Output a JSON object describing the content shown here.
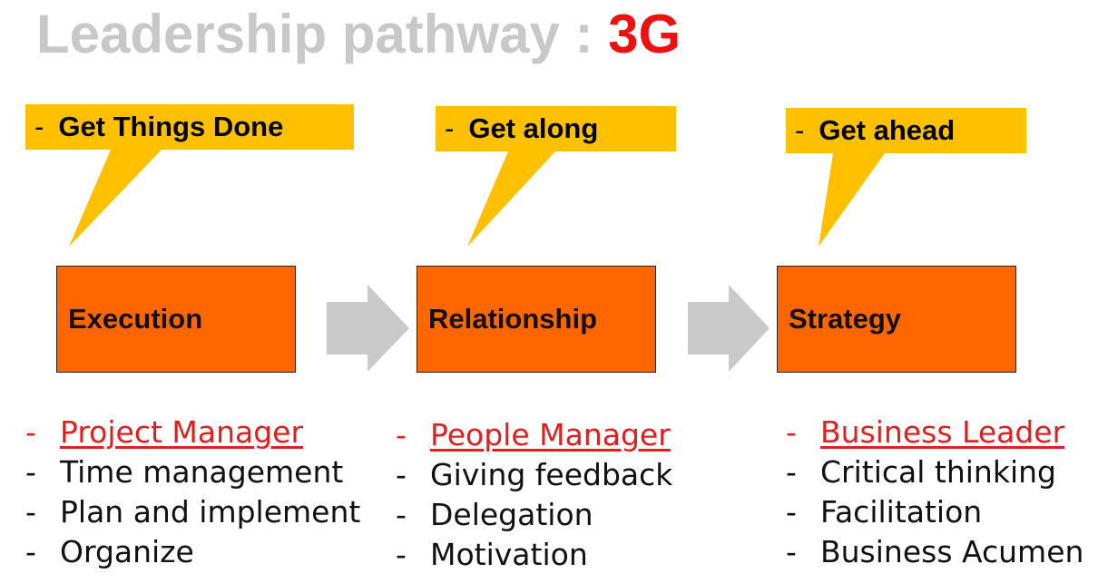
{
  "title": {
    "text": "Leadership pathway : ",
    "accent": "3G"
  },
  "colors": {
    "callout": "#ffc000",
    "stage": "#ff6600",
    "arrow": "#c9c9c9",
    "title": "#c8c8c8",
    "accent": "#ee1111",
    "heading": "#e31e1e"
  },
  "columns": [
    {
      "callout": "Get Things Done",
      "stage": "Execution",
      "items": [
        {
          "text": "Project Manager",
          "heading": true
        },
        {
          "text": "Time management"
        },
        {
          "text": "Plan and implement"
        },
        {
          "text": "Organize"
        }
      ]
    },
    {
      "callout": "Get along",
      "stage": "Relationship",
      "items": [
        {
          "text": "People Manager",
          "heading": true
        },
        {
          "text": "Giving feedback"
        },
        {
          "text": "Delegation"
        },
        {
          "text": "Motivation"
        }
      ]
    },
    {
      "callout": "Get ahead",
      "stage": "Strategy",
      "items": [
        {
          "text": "Business Leader",
          "heading": true
        },
        {
          "text": "Critical thinking"
        },
        {
          "text": "Facilitation"
        },
        {
          "text": "Business Acumen"
        }
      ]
    }
  ]
}
